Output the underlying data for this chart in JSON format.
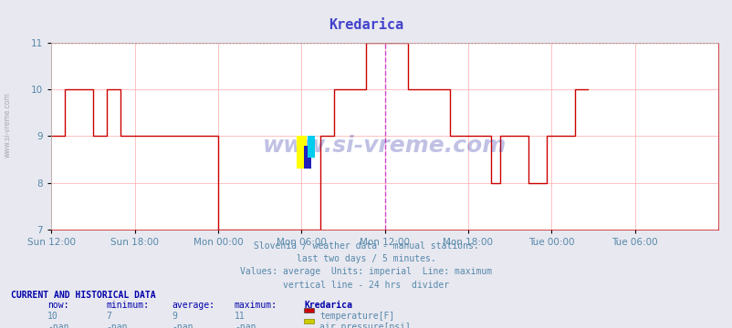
{
  "title": "Kredarica",
  "title_color": "#4444cc",
  "bg_color": "#e8e8f0",
  "plot_bg_color": "#ffffff",
  "grid_color": "#ffaaaa",
  "ylim": [
    7,
    11
  ],
  "yticks": [
    7,
    8,
    9,
    10,
    11
  ],
  "xlabel_color": "#5588aa",
  "xtick_labels": [
    "Sun 12:00",
    "Sun 18:00",
    "Mon 00:00",
    "Mon 06:00",
    "Mon 12:00",
    "Mon 18:00",
    "Tue 00:00",
    "Tue 06:00"
  ],
  "xtick_positions": [
    0,
    72,
    144,
    216,
    288,
    360,
    432,
    504
  ],
  "total_points": 576,
  "line_color": "#cc0000",
  "max_line_y": 11,
  "max_line_color": "#ff4444",
  "vline_x": 288,
  "vline_color": "#cc44cc",
  "watermark_text": "www.si-vreme.com",
  "watermark_color": "#3333aa",
  "watermark_alpha": 0.3,
  "subtitle_lines": [
    "Slovenia / weather data - manual stations.",
    "last two days / 5 minutes.",
    "Values: average  Units: imperial  Line: maximum",
    "vertical line - 24 hrs  divider"
  ],
  "subtitle_color": "#5588aa",
  "footer_header": "CURRENT AND HISTORICAL DATA",
  "footer_header_color": "#0000aa",
  "col_headers": [
    "now:",
    "minimum:",
    "average:",
    "maximum:",
    "Kredarica"
  ],
  "row1_vals": [
    "10",
    "7",
    "9",
    "11"
  ],
  "row2_vals": [
    "-nan",
    "-nan",
    "-nan",
    "-nan"
  ],
  "legend1_label": "temperature[F]",
  "legend1_color": "#cc0000",
  "legend2_label": "air pressure[psi]",
  "legend2_color": "#cccc00",
  "temp_data": [
    9,
    9,
    9,
    9,
    9,
    9,
    9,
    9,
    9,
    9,
    9,
    9,
    10,
    10,
    10,
    10,
    10,
    10,
    10,
    10,
    10,
    10,
    10,
    10,
    10,
    10,
    10,
    10,
    10,
    10,
    10,
    10,
    10,
    10,
    10,
    10,
    9,
    9,
    9,
    9,
    9,
    9,
    9,
    9,
    9,
    9,
    9,
    9,
    10,
    10,
    10,
    10,
    10,
    10,
    10,
    10,
    10,
    10,
    10,
    10,
    9,
    9,
    9,
    9,
    9,
    9,
    9,
    9,
    9,
    9,
    9,
    9,
    9,
    9,
    9,
    9,
    9,
    9,
    9,
    9,
    9,
    9,
    9,
    9,
    9,
    9,
    9,
    9,
    9,
    9,
    9,
    9,
    9,
    9,
    9,
    9,
    9,
    9,
    9,
    9,
    9,
    9,
    9,
    9,
    9,
    9,
    9,
    9,
    9,
    9,
    9,
    9,
    9,
    9,
    9,
    9,
    9,
    9,
    9,
    9,
    9,
    9,
    9,
    9,
    9,
    9,
    9,
    9,
    9,
    9,
    9,
    9,
    9,
    9,
    9,
    9,
    9,
    9,
    9,
    9,
    9,
    9,
    9,
    9,
    7,
    7,
    7,
    7,
    7,
    7,
    7,
    7,
    7,
    7,
    7,
    7,
    7,
    7,
    7,
    7,
    7,
    7,
    7,
    7,
    7,
    7,
    7,
    7,
    7,
    7,
    7,
    7,
    7,
    7,
    7,
    7,
    7,
    7,
    7,
    7,
    7,
    7,
    7,
    7,
    7,
    7,
    7,
    7,
    7,
    7,
    7,
    7,
    7,
    7,
    7,
    7,
    7,
    7,
    7,
    7,
    7,
    7,
    7,
    7,
    7,
    7,
    7,
    7,
    7,
    7,
    7,
    7,
    7,
    7,
    7,
    7,
    7,
    7,
    7,
    7,
    7,
    7,
    7,
    7,
    7,
    7,
    7,
    7,
    7,
    7,
    7,
    7,
    9,
    9,
    9,
    9,
    9,
    9,
    9,
    9,
    9,
    9,
    9,
    9,
    10,
    10,
    10,
    10,
    10,
    10,
    10,
    10,
    10,
    10,
    10,
    10,
    10,
    10,
    10,
    10,
    10,
    10,
    10,
    10,
    10,
    10,
    10,
    10,
    10,
    10,
    10,
    10,
    11,
    11,
    11,
    11,
    11,
    11,
    11,
    11,
    11,
    11,
    11,
    11,
    11,
    11,
    11,
    11,
    11,
    11,
    11,
    11,
    11,
    11,
    11,
    11,
    11,
    11,
    11,
    11,
    11,
    11,
    11,
    11,
    11,
    11,
    11,
    11,
    10,
    10,
    10,
    10,
    10,
    10,
    10,
    10,
    10,
    10,
    10,
    10,
    10,
    10,
    10,
    10,
    10,
    10,
    10,
    10,
    10,
    10,
    10,
    10,
    10,
    10,
    10,
    10,
    10,
    10,
    10,
    10,
    10,
    10,
    10,
    10,
    9,
    9,
    9,
    9,
    9,
    9,
    9,
    9,
    9,
    9,
    9,
    9,
    9,
    9,
    9,
    9,
    9,
    9,
    9,
    9,
    9,
    9,
    9,
    9,
    9,
    9,
    9,
    9,
    9,
    9,
    9,
    9,
    9,
    9,
    9,
    9,
    8,
    8,
    8,
    8,
    8,
    8,
    8,
    8,
    9,
    9,
    9,
    9,
    9,
    9,
    9,
    9,
    9,
    9,
    9,
    9,
    9,
    9,
    9,
    9,
    9,
    9,
    9,
    9,
    9,
    9,
    9,
    9,
    8,
    8,
    8,
    8,
    8,
    8,
    8,
    8,
    8,
    8,
    8,
    8,
    8,
    8,
    8,
    8,
    9,
    9,
    9,
    9,
    9,
    9,
    9,
    9,
    9,
    9,
    9,
    9,
    9,
    9,
    9,
    9,
    9,
    9,
    9,
    9,
    9,
    9,
    9,
    9,
    10,
    10,
    10,
    10,
    10,
    10,
    10,
    10,
    10,
    10,
    10,
    10
  ]
}
